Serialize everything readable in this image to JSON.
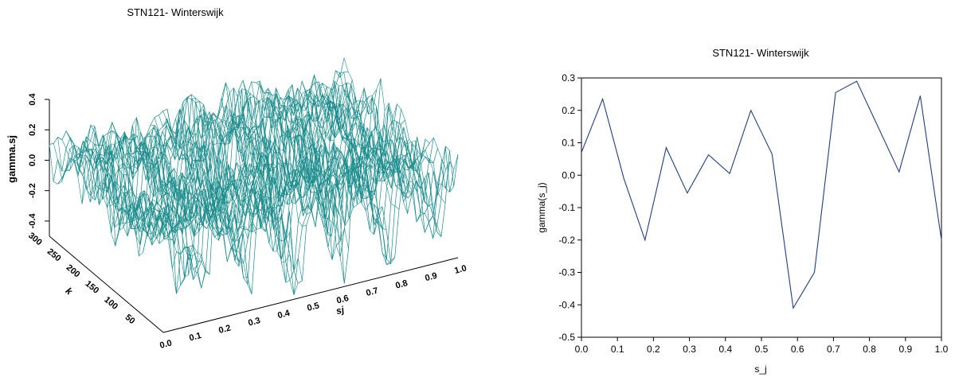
{
  "chart_data": [
    {
      "type": "surface",
      "title": "STN121- Winterswijk",
      "xlabel": "sj",
      "ylabel": "k",
      "zlabel": "gamma.sj",
      "x_ticks": [
        "0.0",
        "0.1",
        "0.2",
        "0.3",
        "0.4",
        "0.5",
        "0.6",
        "0.7",
        "0.8",
        "0.9",
        "1.0"
      ],
      "y_ticks": [
        "50",
        "100",
        "150",
        "200",
        "250",
        "300"
      ],
      "z_ticks": [
        "-0.4",
        "-0.2",
        "0.0",
        "0.2",
        "0.4"
      ],
      "xlim": [
        0,
        1
      ],
      "ylim": [
        0,
        300
      ],
      "zlim": [
        -0.5,
        0.4
      ],
      "mesh_color": "#1a8c8c"
    },
    {
      "type": "line",
      "title": "STN121- Winterswijk",
      "xlabel": "s_j",
      "ylabel": "gamma(s_j)",
      "xlim": [
        0,
        1
      ],
      "ylim": [
        -0.5,
        0.3
      ],
      "x_ticks": [
        "0.0",
        "0.1",
        "0.2",
        "0.3",
        "0.4",
        "0.5",
        "0.6",
        "0.7",
        "0.8",
        "0.9",
        "1.0"
      ],
      "y_ticks": [
        "0.3",
        "0.2",
        "0.1",
        "0.0",
        "-0.1",
        "-0.2",
        "-0.3",
        "-0.4",
        "-0.5"
      ],
      "line_color": "#1f3f7f",
      "x": [
        0.0,
        0.0588,
        0.1176,
        0.1765,
        0.2353,
        0.2941,
        0.3529,
        0.4118,
        0.4706,
        0.5294,
        0.5882,
        0.6471,
        0.7059,
        0.7647,
        0.8235,
        0.8824,
        0.9412,
        1.0
      ],
      "y": [
        0.07,
        0.235,
        -0.01,
        -0.2,
        0.085,
        -0.055,
        0.063,
        0.005,
        0.2,
        0.065,
        -0.41,
        -0.3,
        0.255,
        0.29,
        0.15,
        0.01,
        0.245,
        -0.2
      ]
    }
  ]
}
